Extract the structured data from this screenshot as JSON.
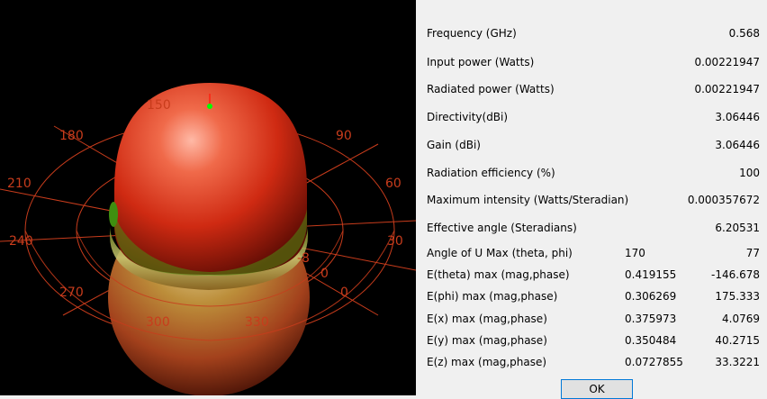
{
  "viewport": {
    "angle_labels": [
      "150",
      "180",
      "90",
      "210",
      "60",
      "240",
      "30",
      "-8",
      "0",
      "270",
      "0",
      "300",
      "330"
    ]
  },
  "results": {
    "rows": [
      {
        "label": "Frequency (GHz)",
        "value": "0.568"
      },
      {
        "label": "Input power (Watts)",
        "value": "0.00221947"
      },
      {
        "label": "Radiated power (Watts)",
        "value": "0.00221947"
      },
      {
        "label": "Directivity(dBi)",
        "value": "3.06446"
      },
      {
        "label": "Gain (dBi)",
        "value": "3.06446"
      },
      {
        "label": "Radiation efficiency (%)",
        "value": "100"
      },
      {
        "label": "Maximum intensity (Watts/Steradian)",
        "value": "0.000357672"
      },
      {
        "label": "Effective angle (Steradians)",
        "value": "6.20531"
      }
    ],
    "pair_rows": [
      {
        "label": "Angle of U Max (theta, phi)",
        "a": "170",
        "b": "77"
      },
      {
        "label": "E(theta) max (mag,phase)",
        "a": "0.419155",
        "b": "-146.678"
      },
      {
        "label": "E(phi) max (mag,phase)",
        "a": "0.306269",
        "b": "175.333"
      },
      {
        "label": "E(x) max (mag,phase)",
        "a": "0.375973",
        "b": "4.0769"
      },
      {
        "label": "E(y) max (mag,phase)",
        "a": "0.350484",
        "b": "40.2715"
      },
      {
        "label": "E(z) max (mag,phase)",
        "a": "0.0727855",
        "b": "33.3221"
      }
    ],
    "ok_label": "OK"
  },
  "colors": {
    "viewport_bg": "#000000",
    "grid_lines": "#c83c1c",
    "lobe_red": "#d42a12",
    "lobe_lower": "#b89a3a",
    "panel_bg": "#f0f0f0",
    "ok_border": "#0078d7"
  }
}
